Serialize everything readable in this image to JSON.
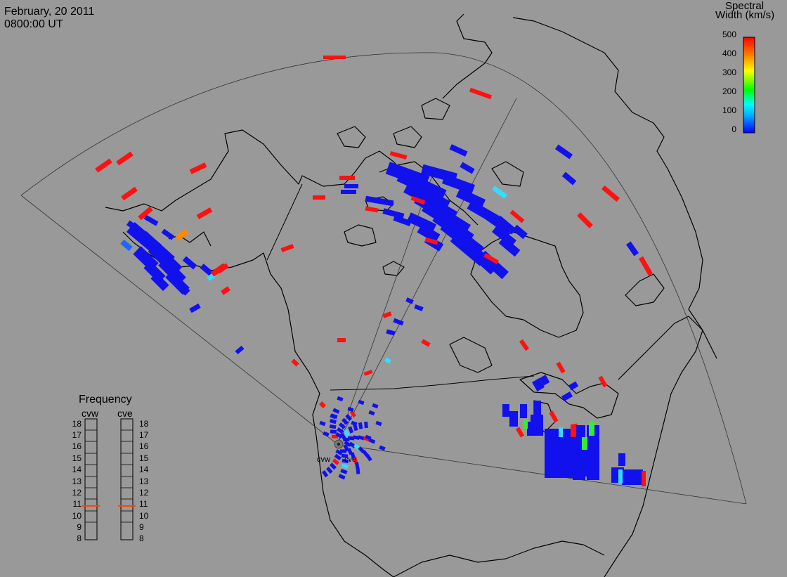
{
  "header": {
    "date": "February, 20 2011",
    "time": "0800:00 UT"
  },
  "colorbar": {
    "title_line1": "Spectral",
    "title_line2": "Width (km/s)",
    "ticks": [
      "500",
      "400",
      "300",
      "200",
      "100",
      "0"
    ],
    "range": [
      0,
      500
    ],
    "colormap": [
      "#0000ff",
      "#00ffff",
      "#00ff00",
      "#ffff00",
      "#ff8800",
      "#ff0000"
    ]
  },
  "frequency_panel": {
    "title": "Frequency",
    "radars": [
      {
        "label": "cvw",
        "current_mhz": 10.8
      },
      {
        "label": "cve",
        "current_mhz": 10.8
      }
    ],
    "scale": [
      "18",
      "17",
      "16",
      "15",
      "14",
      "13",
      "12",
      "11",
      "10",
      "9",
      "8"
    ],
    "marker_color": "#ff4400"
  },
  "radar_sites": [
    {
      "label": "cvw"
    },
    {
      "label": "cve"
    }
  ],
  "colors": {
    "background": "#999999",
    "low_width": "#0000ff",
    "high_width": "#ff0000",
    "coast": "#000000"
  }
}
